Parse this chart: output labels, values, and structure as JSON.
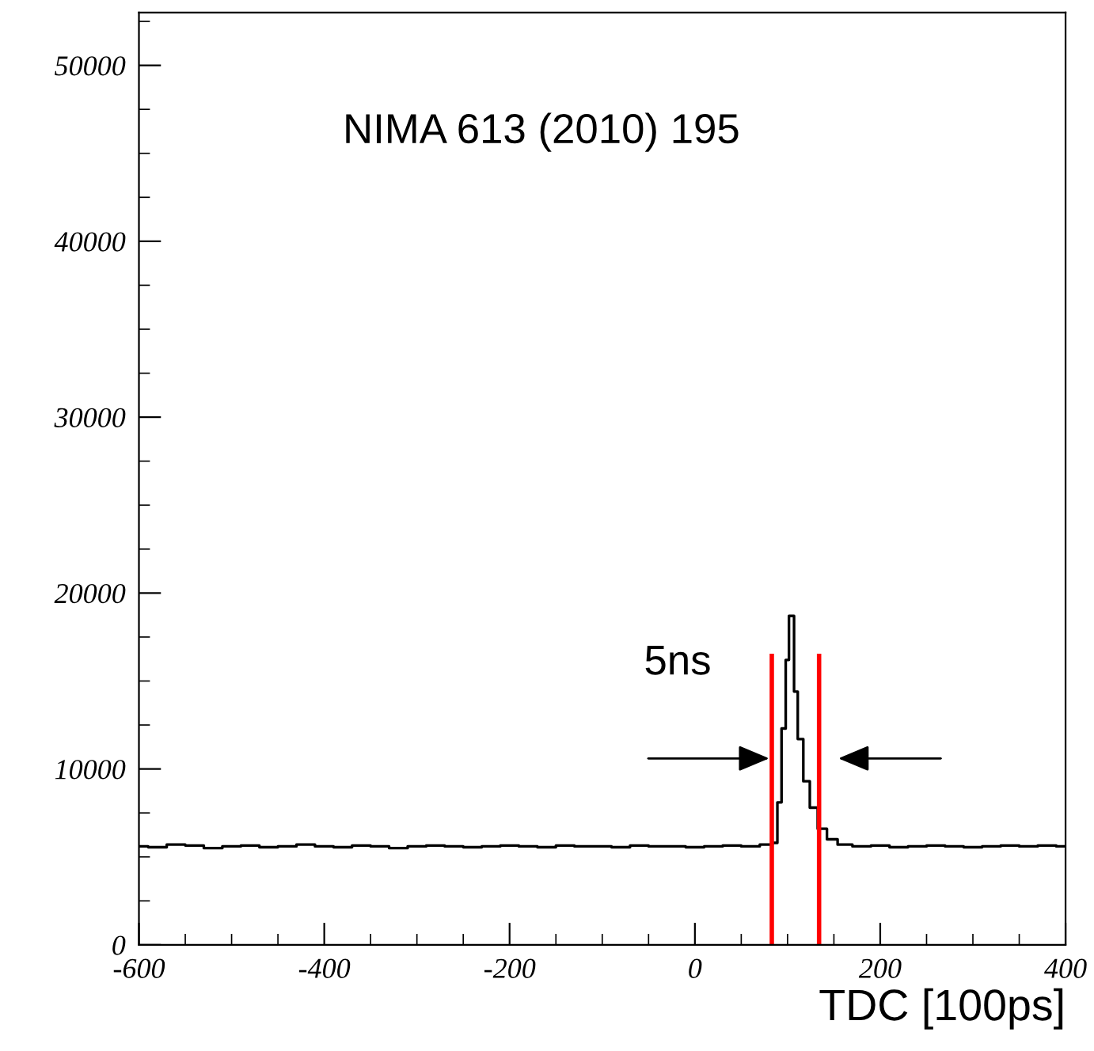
{
  "chart_data": {
    "type": "step",
    "xlabel": "TDC [100ps]",
    "annotations": [
      "NIMA 613 (2010) 195",
      "5ns"
    ],
    "series": [
      {
        "color": "#000000",
        "x": [
          -600,
          -580,
          -560,
          -540,
          -520,
          -500,
          -480,
          -460,
          -440,
          -420,
          -400,
          -380,
          -360,
          -340,
          -320,
          -300,
          -280,
          -260,
          -240,
          -220,
          -200,
          -180,
          -160,
          -140,
          -120,
          -100,
          -80,
          -60,
          -40,
          -20,
          0,
          20,
          40,
          60,
          80,
          87,
          91,
          96,
          100,
          103,
          106,
          108,
          114,
          120,
          128,
          137,
          148,
          160,
          180,
          200,
          220,
          240,
          260,
          280,
          300,
          320,
          340,
          360,
          380,
          400
        ],
        "values": [
          5600,
          5550,
          5700,
          5650,
          5500,
          5600,
          5650,
          5550,
          5600,
          5700,
          5600,
          5550,
          5650,
          5600,
          5500,
          5600,
          5650,
          5600,
          5550,
          5600,
          5650,
          5600,
          5550,
          5650,
          5600,
          5600,
          5550,
          5650,
          5600,
          5600,
          5550,
          5600,
          5650,
          5600,
          5700,
          5800,
          8100,
          12300,
          16200,
          18700,
          18700,
          14400,
          11700,
          9300,
          7800,
          6600,
          6000,
          5700,
          5600,
          5650,
          5550,
          5600,
          5650,
          5600,
          5550,
          5600,
          5650,
          5600,
          5650,
          5600
        ]
      }
    ],
    "xlim": [
      -600,
      400
    ],
    "ylim": [
      0,
      53000
    ],
    "xticks": [
      -600,
      -400,
      -200,
      0,
      200,
      400
    ],
    "yticks": [
      0,
      10000,
      20000,
      30000,
      40000,
      50000
    ],
    "ref_lines": [
      {
        "axis": "x",
        "value": 83,
        "color": "#ff0000"
      },
      {
        "axis": "x",
        "value": 134,
        "color": "#ff0000"
      }
    ],
    "grid": false,
    "legend": false
  }
}
